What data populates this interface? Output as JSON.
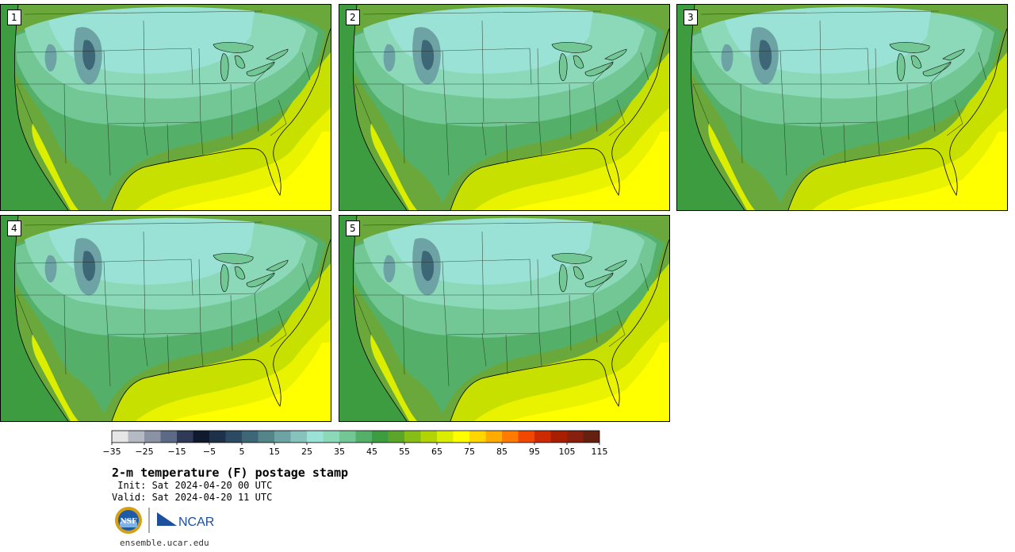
{
  "panels": [
    {
      "label": "1"
    },
    {
      "label": "2"
    },
    {
      "label": "3"
    },
    {
      "label": "4"
    },
    {
      "label": "5"
    }
  ],
  "colorbar": {
    "tick_labels": [
      "−35",
      "−25",
      "−15",
      "−5",
      "5",
      "15",
      "25",
      "35",
      "45",
      "55",
      "65",
      "75",
      "85",
      "95",
      "105",
      "115"
    ],
    "colors": [
      "#e6e6e6",
      "#b5b9c4",
      "#8b92a4",
      "#5d6a85",
      "#2e3a56",
      "#0f1a2e",
      "#1d3148",
      "#2c4a62",
      "#3d6676",
      "#548589",
      "#6ea3a5",
      "#86c3bd",
      "#9ae2d6",
      "#8cd9b9",
      "#72c795",
      "#54b068",
      "#3d9b40",
      "#5ca52b",
      "#86bd16",
      "#b2d404",
      "#dcee00",
      "#ffff00",
      "#ffd700",
      "#ffab00",
      "#ff7b00",
      "#f04800",
      "#cc2a00",
      "#a81e00",
      "#882010",
      "#652010"
    ]
  },
  "title": "2-m temperature (F) postage stamp",
  "init_line": " Init: Sat 2024-04-20 00 UTC",
  "valid_line": "Valid: Sat 2024-04-20 11 UTC",
  "logos": {
    "nsf": "NSF",
    "ncar": "NCAR"
  },
  "footer_url": "ensemble.ucar.edu"
}
